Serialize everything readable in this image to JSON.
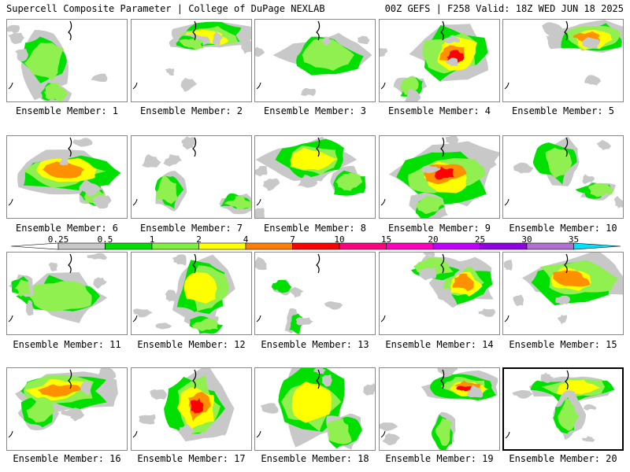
{
  "header": {
    "left_title": "Supercell Composite Parameter | College of DuPage NEXLAB",
    "right_title": "00Z GEFS | F258 Valid: 18Z WED JUN 18 2025"
  },
  "legend": {
    "labels": [
      "0.25",
      "0.5",
      "1",
      "2",
      "4",
      "7",
      "10",
      "15",
      "20",
      "25",
      "30",
      "35"
    ],
    "colors": [
      "#c8c8c8",
      "#00e000",
      "#80f040",
      "#ffff00",
      "#ff8000",
      "#ff0000",
      "#ff0080",
      "#ff00c0",
      "#c000ff",
      "#9000e0",
      "#b070d0",
      "#00e0ff"
    ],
    "end_color_low": "#ffffff"
  },
  "colors": {
    "grey": "#c8c8c8",
    "green": "#00e000",
    "lightgreen": "#90f050",
    "yellow": "#ffff00",
    "orange": "#ff9000",
    "red": "#ff0000",
    "coast": "#000000"
  },
  "panels": [
    {
      "caption": "Ensemble Member: 1",
      "intensity": 2
    },
    {
      "caption": "Ensemble Member: 2",
      "intensity": 3
    },
    {
      "caption": "Ensemble Member: 3",
      "intensity": 2
    },
    {
      "caption": "Ensemble Member: 4",
      "intensity": 5
    },
    {
      "caption": "Ensemble Member: 5",
      "intensity": 4
    },
    {
      "caption": "Ensemble Member: 6",
      "intensity": 4
    },
    {
      "caption": "Ensemble Member: 7",
      "intensity": 2
    },
    {
      "caption": "Ensemble Member: 8",
      "intensity": 3
    },
    {
      "caption": "Ensemble Member: 9",
      "intensity": 5
    },
    {
      "caption": "Ensemble Member: 10",
      "intensity": 2
    },
    {
      "caption": "Ensemble Member: 11",
      "intensity": 2
    },
    {
      "caption": "Ensemble Member: 12",
      "intensity": 3
    },
    {
      "caption": "Ensemble Member: 13",
      "intensity": 1
    },
    {
      "caption": "Ensemble Member: 14",
      "intensity": 4
    },
    {
      "caption": "Ensemble Member: 15",
      "intensity": 4
    },
    {
      "caption": "Ensemble Member: 16",
      "intensity": 4
    },
    {
      "caption": "Ensemble Member: 17",
      "intensity": 5
    },
    {
      "caption": "Ensemble Member: 18",
      "intensity": 3
    },
    {
      "caption": "Ensemble Member: 19",
      "intensity": 5
    },
    {
      "caption": "Ensemble Member: 20",
      "intensity": 3,
      "selected": true
    }
  ]
}
